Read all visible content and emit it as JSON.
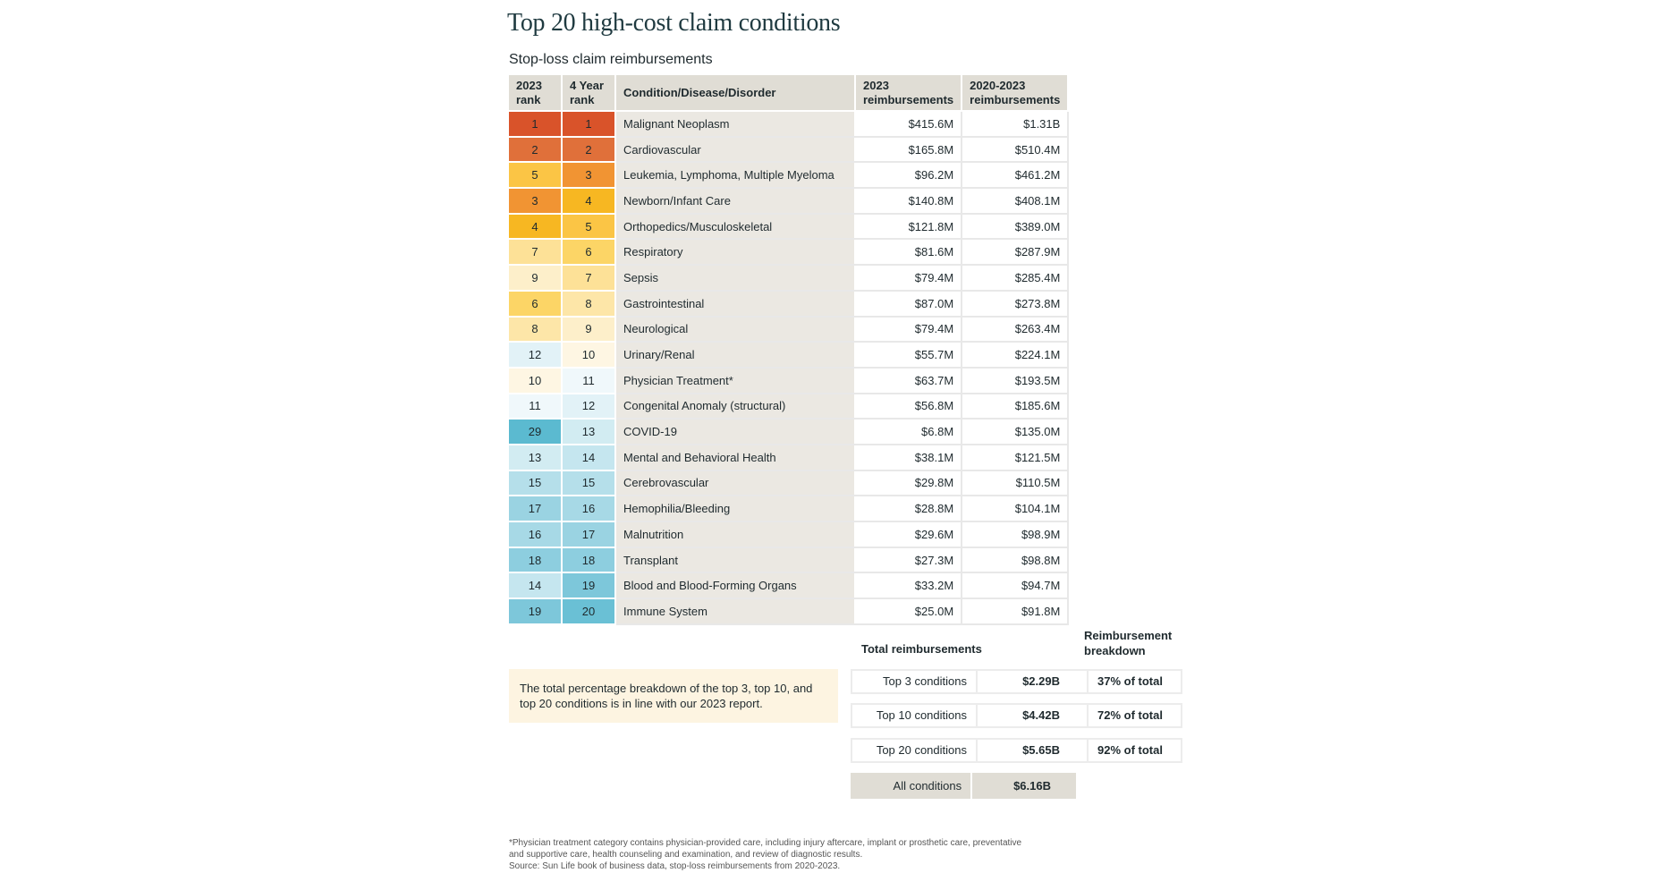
{
  "title": "Top 20 high-cost claim conditions",
  "subtitle": "Stop-loss claim reimbursements",
  "table": {
    "headers": {
      "rank_2023": [
        "2023",
        "rank"
      ],
      "rank_4yr": [
        "4 Year",
        "rank"
      ],
      "condition": "Condition/Disease/Disorder",
      "reimb_2023": [
        "2023",
        "reimbursements"
      ],
      "reimb_2020_2023": [
        "2020-2023",
        "reimbursements"
      ]
    },
    "rows": [
      {
        "rank_2023": "1",
        "rank_4yr": "1",
        "condition": "Malignant Neoplasm",
        "reimb_2023": "$415.6M",
        "reimb_2020_2023": "$1.31B"
      },
      {
        "rank_2023": "2",
        "rank_4yr": "2",
        "condition": "Cardiovascular",
        "reimb_2023": "$165.8M",
        "reimb_2020_2023": "$510.4M"
      },
      {
        "rank_2023": "5",
        "rank_4yr": "3",
        "condition": "Leukemia, Lymphoma, Multiple Myeloma",
        "reimb_2023": "$96.2M",
        "reimb_2020_2023": "$461.2M"
      },
      {
        "rank_2023": "3",
        "rank_4yr": "4",
        "condition": "Newborn/Infant Care",
        "reimb_2023": "$140.8M",
        "reimb_2020_2023": "$408.1M"
      },
      {
        "rank_2023": "4",
        "rank_4yr": "5",
        "condition": "Orthopedics/Musculoskeletal",
        "reimb_2023": "$121.8M",
        "reimb_2020_2023": "$389.0M"
      },
      {
        "rank_2023": "7",
        "rank_4yr": "6",
        "condition": "Respiratory",
        "reimb_2023": "$81.6M",
        "reimb_2020_2023": "$287.9M"
      },
      {
        "rank_2023": "9",
        "rank_4yr": "7",
        "condition": "Sepsis",
        "reimb_2023": "$79.4M",
        "reimb_2020_2023": "$285.4M"
      },
      {
        "rank_2023": "6",
        "rank_4yr": "8",
        "condition": "Gastrointestinal",
        "reimb_2023": "$87.0M",
        "reimb_2020_2023": "$273.8M"
      },
      {
        "rank_2023": "8",
        "rank_4yr": "9",
        "condition": "Neurological",
        "reimb_2023": "$79.4M",
        "reimb_2020_2023": "$263.4M"
      },
      {
        "rank_2023": "12",
        "rank_4yr": "10",
        "condition": "Urinary/Renal",
        "reimb_2023": "$55.7M",
        "reimb_2020_2023": "$224.1M"
      },
      {
        "rank_2023": "10",
        "rank_4yr": "11",
        "condition": "Physician Treatment*",
        "reimb_2023": "$63.7M",
        "reimb_2020_2023": "$193.5M"
      },
      {
        "rank_2023": "11",
        "rank_4yr": "12",
        "condition": "Congenital Anomaly (structural)",
        "reimb_2023": "$56.8M",
        "reimb_2020_2023": "$185.6M"
      },
      {
        "rank_2023": "29",
        "rank_4yr": "13",
        "condition": "COVID-19",
        "reimb_2023": "$6.8M",
        "reimb_2020_2023": "$135.0M"
      },
      {
        "rank_2023": "13",
        "rank_4yr": "14",
        "condition": "Mental and Behavioral Health",
        "reimb_2023": "$38.1M",
        "reimb_2020_2023": "$121.5M"
      },
      {
        "rank_2023": "15",
        "rank_4yr": "15",
        "condition": "Cerebrovascular",
        "reimb_2023": "$29.8M",
        "reimb_2020_2023": "$110.5M"
      },
      {
        "rank_2023": "17",
        "rank_4yr": "16",
        "condition": "Hemophilia/Bleeding",
        "reimb_2023": "$28.8M",
        "reimb_2020_2023": "$104.1M"
      },
      {
        "rank_2023": "16",
        "rank_4yr": "17",
        "condition": "Malnutrition",
        "reimb_2023": "$29.6M",
        "reimb_2020_2023": "$98.9M"
      },
      {
        "rank_2023": "18",
        "rank_4yr": "18",
        "condition": "Transplant",
        "reimb_2023": "$27.3M",
        "reimb_2020_2023": "$98.8M"
      },
      {
        "rank_2023": "14",
        "rank_4yr": "19",
        "condition": "Blood and Blood-Forming Organs",
        "reimb_2023": "$33.2M",
        "reimb_2020_2023": "$94.7M"
      },
      {
        "rank_2023": "19",
        "rank_4yr": "20",
        "condition": "Immune System",
        "reimb_2023": "$25.0M",
        "reimb_2020_2023": "$91.8M"
      }
    ],
    "rank_colors": {
      "1": "#d9532a",
      "2": "#e0703a",
      "3": "#f19433",
      "4": "#f7b722",
      "5": "#fbc545",
      "6": "#fcd566",
      "7": "#fde197",
      "8": "#fde6a8",
      "9": "#fdefca",
      "10": "#fef6e3",
      "11": "#f0f8fb",
      "12": "#e2f2f7",
      "13": "#d2ecf2",
      "14": "#c5e6ef",
      "15": "#b5dfea",
      "16": "#a7d9e6",
      "17": "#9ad3e2",
      "18": "#8dcedf",
      "19": "#7dc7da",
      "20": "#6ac0d5",
      "29": "#5bbad0"
    }
  },
  "summary": {
    "total_label": "Total reimbursements",
    "breakdown_label": [
      "Reimbursement",
      "breakdown"
    ],
    "rows": [
      {
        "label": "Top 3 conditions",
        "value": "$2.29B",
        "pct": "37% of total"
      },
      {
        "label": "Top 10 conditions",
        "value": "$4.42B",
        "pct": "72% of total"
      },
      {
        "label": "Top 20 conditions",
        "value": "$5.65B",
        "pct": "92% of total"
      }
    ],
    "all": {
      "label": "All conditions",
      "value": "$6.16B"
    }
  },
  "note": "The total percentage breakdown of the top 3, top 10, and top 20 conditions is in line with our 2023 report.",
  "footnotes": [
    "*Physician treatment category contains physician-provided care, including injury aftercare, implant or prosthetic care, preventative",
    "and supportive care, health counseling and examination, and review of diagnostic results.",
    "Source: Sun Life book of business data, stop-loss reimbursements from 2020-2023."
  ]
}
